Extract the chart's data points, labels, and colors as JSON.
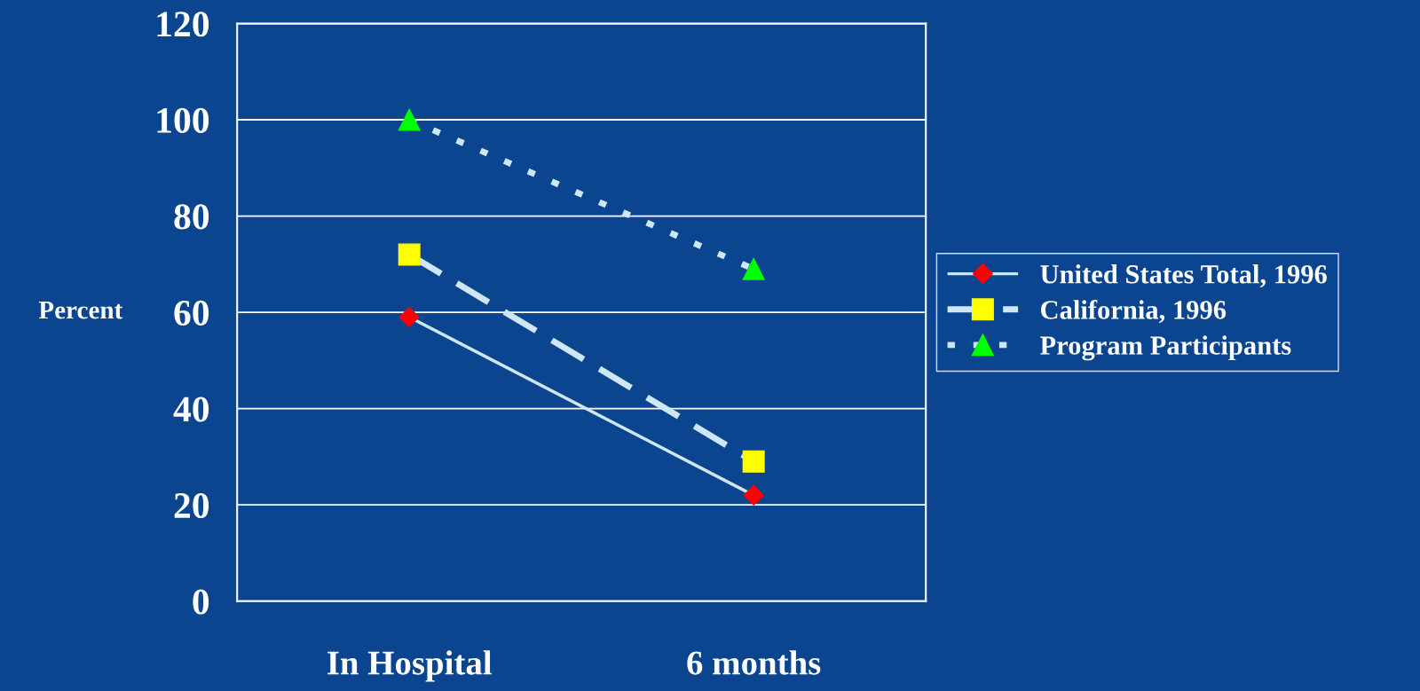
{
  "chart_data": {
    "type": "line",
    "ylabel": "Percent",
    "categories": [
      "In Hospital",
      "6 months"
    ],
    "ylim": [
      0,
      120
    ],
    "yticks": [
      0,
      20,
      40,
      60,
      80,
      100,
      120
    ],
    "grid": "y",
    "legend": "right",
    "series": [
      {
        "name": "United States Total, 1996",
        "color": "#ff0000",
        "values": [
          59,
          22
        ],
        "marker": "diamond",
        "line_style": "solid"
      },
      {
        "name": "California, 1996",
        "color": "#ffff00",
        "values": [
          72,
          29
        ],
        "marker": "square",
        "line_style": "dashed"
      },
      {
        "name": "Program Participants",
        "color": "#00ff00",
        "values": [
          100,
          69
        ],
        "marker": "triangle",
        "line_style": "dotted"
      }
    ]
  }
}
